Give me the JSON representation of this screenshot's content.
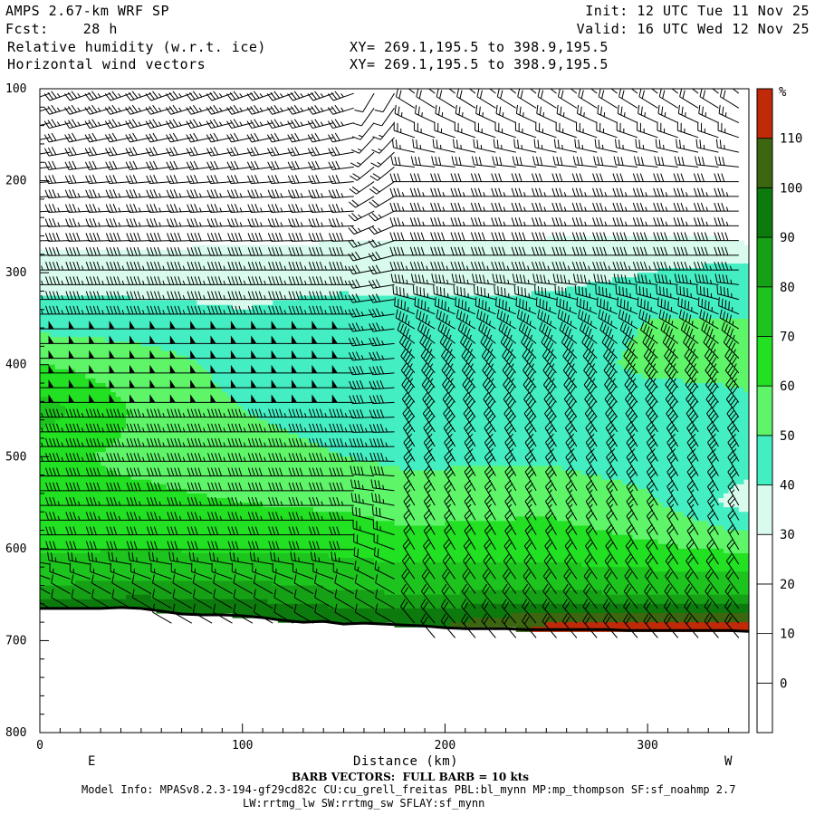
{
  "header": {
    "model": "AMPS 2.67-km WRF SP",
    "init": "Init: 12 UTC Tue 11 Nov 25",
    "fcst": "Fcst:    28 h",
    "valid": "Valid: 16 UTC Wed 12 Nov 25",
    "field1": "Relative humidity (w.r.t. ice)",
    "field2": "Horizontal wind vectors",
    "xy1": "XY= 269.1,195.5 to 398.9,195.5",
    "xy2": "XY= 269.1,195.5 to 398.9,195.5"
  },
  "footer": {
    "barb_note": "BARB VECTORS:  FULL BARB = 10 kts",
    "model_info": "Model Info: MPASv8.2.3-194-gf29cd82c CU:cu_grell_freitas PBL:bl_mynn MP:mp_thompson SF:sf_noahmp 2.7",
    "model_info2": "LW:rrtmg_lw SW:rrtmg_sw SFLAY:sf_mynn"
  },
  "colors": {
    "bands": [
      "#ffffff",
      "#ffffff",
      "#ffffff",
      "#ffffff",
      "#d8fbee",
      "#44eec3",
      "#5ef569",
      "#22e022",
      "#1ec41e",
      "#16a016",
      "#0d7a0d",
      "#3d6610",
      "#c02a08"
    ],
    "terrain": "#000000"
  },
  "chart_data": {
    "type": "heatmap",
    "title": "Relative humidity (w.r.t. ice)",
    "xlabel": "Distance (km)",
    "ylabel": "",
    "xlim": [
      0,
      350
    ],
    "ylim": [
      800,
      100
    ],
    "x_ticks": [
      0,
      100,
      200,
      300
    ],
    "y_ticks": [
      100,
      200,
      300,
      400,
      500,
      600,
      700,
      800
    ],
    "x_end_labels": {
      "left": "E",
      "right": "W"
    },
    "colorbar": {
      "unit": "%",
      "levels": [
        0,
        10,
        20,
        30,
        40,
        50,
        60,
        70,
        80,
        90,
        100,
        110
      ],
      "range": [
        -10,
        120
      ]
    },
    "terrain_surface": {
      "x": [
        0,
        10,
        20,
        30,
        40,
        50,
        60,
        70,
        80,
        90,
        100,
        110,
        120,
        130,
        140,
        150,
        160,
        170,
        180,
        190,
        200,
        210,
        220,
        230,
        240,
        250,
        260,
        270,
        280,
        290,
        300,
        310,
        320,
        330,
        340,
        350
      ],
      "p": [
        665,
        665,
        665,
        665,
        664,
        665,
        668,
        671,
        672,
        672,
        673,
        675,
        678,
        680,
        679,
        682,
        681,
        682,
        683,
        684,
        686,
        687,
        687,
        687,
        688,
        688,
        688,
        688,
        688,
        689,
        689,
        689,
        689,
        689,
        689,
        690
      ]
    },
    "rh_profiles": [
      {
        "x": 0,
        "rh": {
          "100": 20,
          "250": 25,
          "290": 33,
          "350": 45,
          "400": 60,
          "450": 75,
          "500": 62,
          "550": 62,
          "600": 68,
          "640": 80,
          "660": 95
        }
      },
      {
        "x": 50,
        "rh": {
          "100": 20,
          "250": 25,
          "300": 35,
          "350": 44,
          "400": 55,
          "450": 58,
          "500": 58,
          "550": 62,
          "600": 70,
          "640": 82,
          "660": 95
        }
      },
      {
        "x": 100,
        "rh": {
          "100": 20,
          "250": 26,
          "300": 36,
          "340": 40,
          "380": 45,
          "450": 50,
          "500": 55,
          "550": 60,
          "600": 68,
          "640": 82,
          "665": 95
        }
      },
      {
        "x": 150,
        "rh": {
          "100": 20,
          "250": 27,
          "300": 36,
          "350": 45,
          "400": 45,
          "450": 45,
          "500": 50,
          "550": 58,
          "600": 68,
          "640": 78,
          "670": 93
        }
      },
      {
        "x": 180,
        "rh": {
          "100": 20,
          "250": 28,
          "300": 35,
          "350": 45,
          "450": 45,
          "500": 48,
          "550": 55,
          "600": 65,
          "650": 80,
          "675": 95
        }
      },
      {
        "x": 250,
        "rh": {
          "100": 20,
          "250": 28,
          "300": 36,
          "350": 45,
          "450": 45,
          "500": 48,
          "550": 58,
          "600": 65,
          "650": 82,
          "670": 100,
          "685": 112
        }
      },
      {
        "x": 300,
        "rh": {
          "100": 20,
          "250": 28,
          "290": 38,
          "350": 50,
          "400": 52,
          "450": 45,
          "500": 45,
          "550": 52,
          "600": 62,
          "650": 80,
          "670": 100,
          "685": 113
        }
      },
      {
        "x": 350,
        "rh": {
          "100": 20,
          "270": 30,
          "300": 45,
          "350": 50,
          "400": 52,
          "500": 45,
          "550": 35,
          "600": 58,
          "650": 80,
          "670": 100,
          "685": 112
        }
      }
    ],
    "wind_barbs": {
      "note": "FULL BARB = 10 kts",
      "columns_x": [
        5,
        15,
        25,
        35,
        45,
        55,
        65,
        75,
        85,
        95,
        105,
        115,
        125,
        135,
        145,
        155,
        165,
        175,
        185,
        195,
        205,
        215,
        225,
        235,
        245,
        255,
        265,
        275,
        285,
        295,
        305,
        315,
        325,
        335,
        345
      ],
      "profiles": [
        {
          "x_max": 160,
          "speed_kts": {
            "100": 35,
            "200": 30,
            "300": 45,
            "400": 50,
            "500": 45,
            "600": 30,
            "650": 10
          },
          "dir_deg": {
            "100": 250,
            "200": 265,
            "300": 270,
            "400": 270,
            "500": 270,
            "600": 270,
            "650": 300
          }
        },
        {
          "x_max": 180,
          "speed_kts": {
            "100": 10,
            "300": 30,
            "500": 45,
            "650": 10
          },
          "dir_deg": {
            "100": 210,
            "300": 260,
            "500": 270,
            "650": 300
          }
        },
        {
          "x_max": 350,
          "speed_kts": {
            "100": 20,
            "200": 30,
            "300": 45,
            "400": 45,
            "500": 35,
            "600": 20,
            "680": 20
          },
          "dir_deg": {
            "100": 310,
            "200": 270,
            "300": 270,
            "400": 320,
            "500": 330,
            "600": 330,
            "680": 320
          }
        }
      ]
    }
  }
}
